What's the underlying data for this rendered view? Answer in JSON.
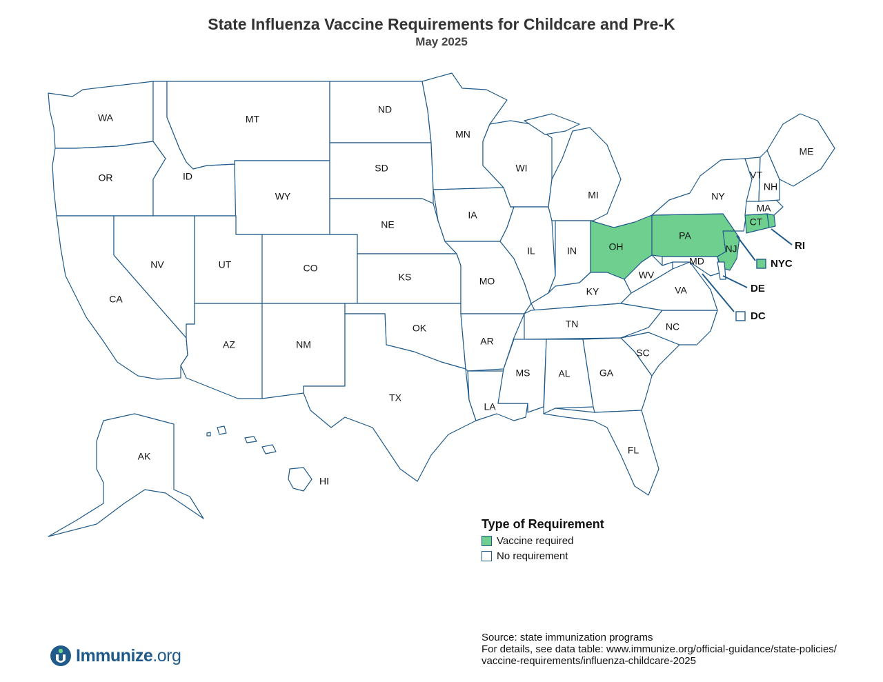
{
  "header": {
    "title": "State Influenza Vaccine Requirements for Childcare and Pre-K",
    "subtitle": "May 2025"
  },
  "colors": {
    "vaccine_required": "#6fcf8e",
    "no_requirement": "#ffffff",
    "border": "#1f5a8a"
  },
  "states": {
    "WA": {
      "label": "WA",
      "requirement": "No requirement"
    },
    "OR": {
      "label": "OR",
      "requirement": "No requirement"
    },
    "CA": {
      "label": "CA",
      "requirement": "No requirement"
    },
    "ID": {
      "label": "ID",
      "requirement": "No requirement"
    },
    "NV": {
      "label": "NV",
      "requirement": "No requirement"
    },
    "MT": {
      "label": "MT",
      "requirement": "No requirement"
    },
    "WY": {
      "label": "WY",
      "requirement": "No requirement"
    },
    "UT": {
      "label": "UT",
      "requirement": "No requirement"
    },
    "AZ": {
      "label": "AZ",
      "requirement": "No requirement"
    },
    "CO": {
      "label": "CO",
      "requirement": "No requirement"
    },
    "NM": {
      "label": "NM",
      "requirement": "No requirement"
    },
    "ND": {
      "label": "ND",
      "requirement": "No requirement"
    },
    "SD": {
      "label": "SD",
      "requirement": "No requirement"
    },
    "NE": {
      "label": "NE",
      "requirement": "No requirement"
    },
    "KS": {
      "label": "KS",
      "requirement": "No requirement"
    },
    "OK": {
      "label": "OK",
      "requirement": "No requirement"
    },
    "TX": {
      "label": "TX",
      "requirement": "No requirement"
    },
    "MN": {
      "label": "MN",
      "requirement": "No requirement"
    },
    "IA": {
      "label": "IA",
      "requirement": "No requirement"
    },
    "MO": {
      "label": "MO",
      "requirement": "No requirement"
    },
    "AR": {
      "label": "AR",
      "requirement": "No requirement"
    },
    "LA": {
      "label": "LA",
      "requirement": "No requirement"
    },
    "WI": {
      "label": "WI",
      "requirement": "No requirement"
    },
    "IL": {
      "label": "IL",
      "requirement": "No requirement"
    },
    "MI": {
      "label": "MI",
      "requirement": "No requirement"
    },
    "IN": {
      "label": "IN",
      "requirement": "No requirement"
    },
    "OH": {
      "label": "OH",
      "requirement": "Vaccine required"
    },
    "KY": {
      "label": "KY",
      "requirement": "No requirement"
    },
    "TN": {
      "label": "TN",
      "requirement": "No requirement"
    },
    "MS": {
      "label": "MS",
      "requirement": "No requirement"
    },
    "AL": {
      "label": "AL",
      "requirement": "No requirement"
    },
    "GA": {
      "label": "GA",
      "requirement": "No requirement"
    },
    "FL": {
      "label": "FL",
      "requirement": "No requirement"
    },
    "SC": {
      "label": "SC",
      "requirement": "No requirement"
    },
    "NC": {
      "label": "NC",
      "requirement": "No requirement"
    },
    "VA": {
      "label": "VA",
      "requirement": "No requirement"
    },
    "WV": {
      "label": "WV",
      "requirement": "No requirement"
    },
    "MD": {
      "label": "MD",
      "requirement": "No requirement"
    },
    "PA": {
      "label": "PA",
      "requirement": "Vaccine required"
    },
    "NY": {
      "label": "NY",
      "requirement": "No requirement"
    },
    "NJ": {
      "label": "NJ",
      "requirement": "Vaccine required"
    },
    "CT": {
      "label": "CT",
      "requirement": "Vaccine required"
    },
    "RI": {
      "label": "RI",
      "requirement": "Vaccine required"
    },
    "MA": {
      "label": "MA",
      "requirement": "No requirement"
    },
    "VT": {
      "label": "VT",
      "requirement": "No requirement"
    },
    "NH": {
      "label": "NH",
      "requirement": "No requirement"
    },
    "ME": {
      "label": "ME",
      "requirement": "No requirement"
    },
    "AK": {
      "label": "AK",
      "requirement": "No requirement"
    },
    "HI": {
      "label": "HI",
      "requirement": "No requirement"
    }
  },
  "callouts": {
    "RI": {
      "label": "RI",
      "requirement": "Vaccine required"
    },
    "NYC": {
      "label": "NYC",
      "requirement": "Vaccine required"
    },
    "DE": {
      "label": "DE",
      "requirement": "No requirement"
    },
    "DC": {
      "label": "DC",
      "requirement": "No requirement"
    }
  },
  "legend": {
    "title": "Type of Requirement",
    "items": [
      {
        "label": "Vaccine required",
        "color": "#6fcf8e"
      },
      {
        "label": "No requirement",
        "color": "#ffffff"
      }
    ]
  },
  "source": {
    "line1": "Source: state immunization programs",
    "line2": "For details, see data table: www.immunize.org/official-guidance/state-policies/",
    "line3": "vaccine-requirements/influenza-childcare-2025"
  },
  "logo": {
    "name": "Immunize",
    "suffix": ".org"
  }
}
